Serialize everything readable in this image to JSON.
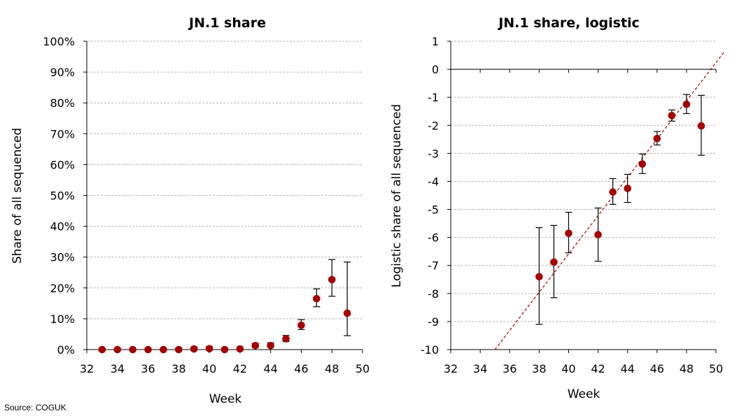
{
  "source": "Source: COGUK",
  "colors": {
    "point": "#a40000",
    "fit_line": "#a40000",
    "grid": "#b3b3b3",
    "axis": "#000000"
  },
  "chart_data": [
    {
      "type": "scatter",
      "title": "JN.1 share",
      "xlabel": "Week",
      "ylabel": "Share of all sequenced",
      "xlim": [
        32,
        50
      ],
      "ylim": [
        0,
        100
      ],
      "x_ticks": [
        32,
        34,
        36,
        38,
        40,
        42,
        44,
        46,
        48,
        50
      ],
      "x_tick_labels": [
        "32",
        "34",
        "36",
        "38",
        "40",
        "42",
        "44",
        "46",
        "48",
        "50"
      ],
      "y_ticks": [
        0,
        10,
        20,
        30,
        40,
        50,
        60,
        70,
        80,
        90,
        100
      ],
      "y_tick_labels": [
        "0%",
        "10%",
        "20%",
        "30%",
        "40%",
        "50%",
        "60%",
        "70%",
        "80%",
        "90%",
        "100%"
      ],
      "grid": "horizontal",
      "points": [
        {
          "x": 33,
          "y": 0.0,
          "lo": 0.0,
          "hi": 0.3
        },
        {
          "x": 34,
          "y": 0.0,
          "lo": 0.0,
          "hi": 0.3
        },
        {
          "x": 35,
          "y": 0.0,
          "lo": 0.0,
          "hi": 0.3
        },
        {
          "x": 36,
          "y": 0.0,
          "lo": 0.0,
          "hi": 0.3
        },
        {
          "x": 37,
          "y": 0.0,
          "lo": 0.0,
          "hi": 0.3
        },
        {
          "x": 38,
          "y": 0.0,
          "lo": 0.0,
          "hi": 0.5
        },
        {
          "x": 39,
          "y": 0.2,
          "lo": 0.0,
          "hi": 0.8
        },
        {
          "x": 40,
          "y": 0.3,
          "lo": 0.1,
          "hi": 1.0
        },
        {
          "x": 41,
          "y": 0.0,
          "lo": 0.0,
          "hi": 0.5
        },
        {
          "x": 42,
          "y": 0.2,
          "lo": 0.1,
          "hi": 0.8
        },
        {
          "x": 43,
          "y": 1.3,
          "lo": 0.7,
          "hi": 2.0
        },
        {
          "x": 44,
          "y": 1.3,
          "lo": 0.8,
          "hi": 2.2
        },
        {
          "x": 45,
          "y": 3.5,
          "lo": 2.6,
          "hi": 4.6
        },
        {
          "x": 46,
          "y": 7.9,
          "lo": 6.5,
          "hi": 9.7
        },
        {
          "x": 47,
          "y": 16.5,
          "lo": 13.9,
          "hi": 19.7
        },
        {
          "x": 48,
          "y": 22.7,
          "lo": 17.3,
          "hi": 29.2
        },
        {
          "x": 49,
          "y": 11.8,
          "lo": 4.5,
          "hi": 28.4
        }
      ]
    },
    {
      "type": "scatter",
      "title": "JN.1 share, logistic",
      "xlabel": "Week",
      "ylabel": "Logistic share of all sequenced",
      "xlim": [
        32,
        50
      ],
      "ylim": [
        -10,
        1
      ],
      "x_ticks": [
        32,
        34,
        36,
        38,
        40,
        42,
        44,
        46,
        48,
        50
      ],
      "x_tick_labels": [
        "32",
        "34",
        "36",
        "38",
        "40",
        "42",
        "44",
        "46",
        "48",
        "50"
      ],
      "y_ticks": [
        1,
        0,
        -1,
        -2,
        -3,
        -4,
        -5,
        -6,
        -7,
        -8,
        -9,
        -10
      ],
      "y_tick_labels": [
        "1",
        "0",
        "-1",
        "-2",
        "-3",
        "-4",
        "-5",
        "-6",
        "-7",
        "-8",
        "-9",
        "-10"
      ],
      "grid": "horizontal",
      "points": [
        {
          "x": 38,
          "y": -7.4,
          "lo": -9.1,
          "hi": -5.65
        },
        {
          "x": 39,
          "y": -6.88,
          "lo": -8.15,
          "hi": -5.57
        },
        {
          "x": 40,
          "y": -5.85,
          "lo": -6.55,
          "hi": -5.1
        },
        {
          "x": 42,
          "y": -5.9,
          "lo": -6.85,
          "hi": -4.95
        },
        {
          "x": 43,
          "y": -4.38,
          "lo": -4.82,
          "hi": -3.9
        },
        {
          "x": 44,
          "y": -4.25,
          "lo": -4.75,
          "hi": -3.75
        },
        {
          "x": 45,
          "y": -3.38,
          "lo": -3.72,
          "hi": -3.02
        },
        {
          "x": 46,
          "y": -2.47,
          "lo": -2.7,
          "hi": -2.22
        },
        {
          "x": 47,
          "y": -1.65,
          "lo": -1.85,
          "hi": -1.45
        },
        {
          "x": 48,
          "y": -1.25,
          "lo": -1.58,
          "hi": -0.9
        },
        {
          "x": 49,
          "y": -2.02,
          "lo": -3.07,
          "hi": -0.93
        }
      ],
      "fit_line": {
        "style": "dashed",
        "x": [
          35,
          50.6
        ],
        "y": [
          -10,
          0.65
        ]
      }
    }
  ]
}
